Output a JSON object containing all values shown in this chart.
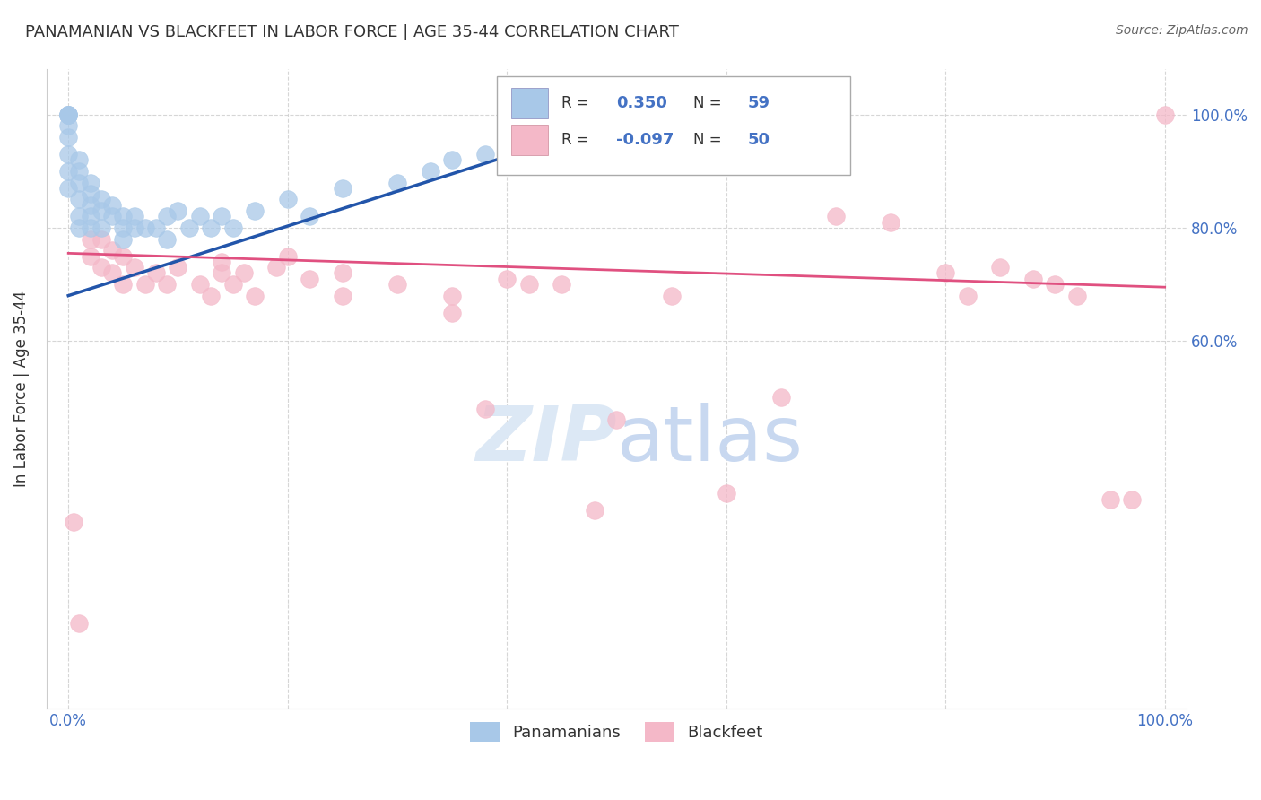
{
  "title": "PANAMANIAN VS BLACKFEET IN LABOR FORCE | AGE 35-44 CORRELATION CHART",
  "source": "Source: ZipAtlas.com",
  "ylabel": "In Labor Force | Age 35-44",
  "xlim": [
    -0.02,
    1.02
  ],
  "ylim": [
    -0.05,
    1.08
  ],
  "watermark": "ZIPatlas",
  "pan_color": "#a8c8e8",
  "blk_color": "#f4b8c8",
  "pan_line_color": "#2255aa",
  "blk_line_color": "#e05080",
  "background_color": "#ffffff",
  "grid_color": "#cccccc",
  "title_color": "#333333",
  "source_color": "#666666",
  "ytick_right_color": "#4472c4",
  "watermark_color": "#dce8f5",
  "pan_trendline_x": [
    0.0,
    0.52
  ],
  "pan_trendline_y": [
    0.68,
    1.0
  ],
  "blk_trendline_x": [
    0.0,
    1.0
  ],
  "blk_trendline_y": [
    0.755,
    0.695
  ],
  "panamanian_x": [
    0.0,
    0.0,
    0.0,
    0.0,
    0.0,
    0.0,
    0.0,
    0.0,
    0.0,
    0.0,
    0.01,
    0.01,
    0.01,
    0.01,
    0.01,
    0.01,
    0.02,
    0.02,
    0.02,
    0.02,
    0.02,
    0.03,
    0.03,
    0.03,
    0.04,
    0.04,
    0.05,
    0.05,
    0.05,
    0.06,
    0.06,
    0.07,
    0.08,
    0.09,
    0.09,
    0.1,
    0.11,
    0.12,
    0.13,
    0.14,
    0.15,
    0.17,
    0.2,
    0.22,
    0.25,
    0.3,
    0.33,
    0.35,
    0.38,
    0.4,
    0.45,
    0.5
  ],
  "panamanian_y": [
    1.0,
    1.0,
    1.0,
    1.0,
    1.0,
    0.98,
    0.96,
    0.93,
    0.9,
    0.87,
    0.92,
    0.9,
    0.88,
    0.85,
    0.82,
    0.8,
    0.88,
    0.86,
    0.84,
    0.82,
    0.8,
    0.85,
    0.83,
    0.8,
    0.84,
    0.82,
    0.82,
    0.8,
    0.78,
    0.82,
    0.8,
    0.8,
    0.8,
    0.82,
    0.78,
    0.83,
    0.8,
    0.82,
    0.8,
    0.82,
    0.8,
    0.83,
    0.85,
    0.82,
    0.87,
    0.88,
    0.9,
    0.92,
    0.93,
    0.95,
    0.97,
    1.0
  ],
  "blackfeet_x": [
    0.005,
    0.01,
    0.02,
    0.02,
    0.03,
    0.03,
    0.04,
    0.04,
    0.05,
    0.05,
    0.06,
    0.07,
    0.08,
    0.09,
    0.1,
    0.12,
    0.13,
    0.14,
    0.14,
    0.15,
    0.16,
    0.17,
    0.19,
    0.2,
    0.22,
    0.25,
    0.25,
    0.3,
    0.35,
    0.35,
    0.4,
    0.45,
    0.5,
    0.55,
    0.6,
    0.65,
    0.7,
    0.75,
    0.8,
    0.82,
    0.85,
    0.88,
    0.9,
    0.92,
    0.95,
    0.97,
    1.0,
    0.38,
    0.42,
    0.48
  ],
  "blackfeet_y": [
    0.28,
    0.1,
    0.75,
    0.78,
    0.73,
    0.78,
    0.72,
    0.76,
    0.7,
    0.75,
    0.73,
    0.7,
    0.72,
    0.7,
    0.73,
    0.7,
    0.68,
    0.72,
    0.74,
    0.7,
    0.72,
    0.68,
    0.73,
    0.75,
    0.71,
    0.68,
    0.72,
    0.7,
    0.65,
    0.68,
    0.71,
    0.7,
    0.46,
    0.68,
    0.33,
    0.5,
    0.82,
    0.81,
    0.72,
    0.68,
    0.73,
    0.71,
    0.7,
    0.68,
    0.32,
    0.32,
    1.0,
    0.48,
    0.7,
    0.3
  ]
}
